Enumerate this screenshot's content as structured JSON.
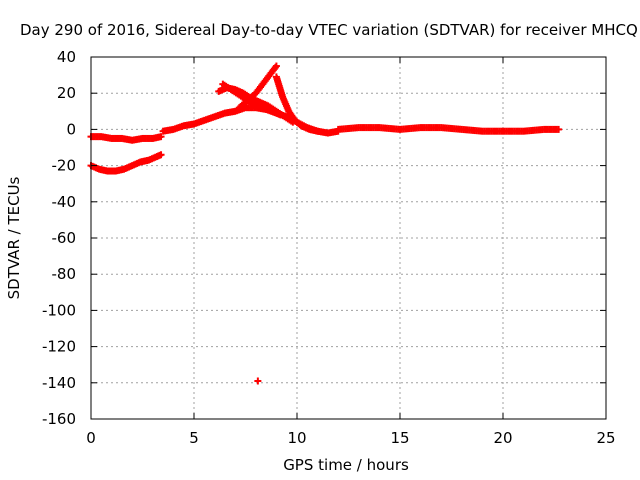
{
  "chart_data": {
    "type": "scatter",
    "title": "Day 290 of 2016, Sidereal Day-to-day VTEC variation (SDTVAR) for receiver MHCQ",
    "xlabel": "GPS time / hours",
    "ylabel": "SDTVAR / TECUs",
    "xlim": [
      0,
      25
    ],
    "ylim": [
      -160,
      40
    ],
    "xticks": [
      "0",
      "5",
      "10",
      "15",
      "20",
      "25"
    ],
    "yticks": [
      "40",
      "20",
      "0",
      "-20",
      "-40",
      "-60",
      "-80",
      "-100",
      "-120",
      "-140",
      "-160"
    ],
    "grid": true,
    "marker": "plus",
    "color": "#ff0000",
    "series": [
      {
        "x": [
          0.0,
          0.5,
          1.0,
          1.5,
          2.0,
          2.5,
          3.0,
          3.4
        ],
        "y": [
          -4,
          -4,
          -5,
          -5,
          -6,
          -5,
          -5,
          -4
        ]
      },
      {
        "x": [
          0.0,
          0.4,
          0.8,
          1.2,
          1.6,
          2.0,
          2.4,
          2.8,
          3.2,
          3.4
        ],
        "y": [
          -20,
          -22,
          -23,
          -23,
          -22,
          -20,
          -18,
          -17,
          -15,
          -14
        ]
      },
      {
        "x": [
          3.5,
          4.0,
          4.5,
          5.0,
          5.5,
          6.0,
          6.5,
          7.0,
          7.5,
          8.0,
          8.5,
          9.0,
          9.5,
          10.0,
          10.5,
          11.0,
          11.5,
          12.0
        ],
        "y": [
          -1,
          0,
          2,
          3,
          5,
          7,
          9,
          10,
          12,
          12,
          11,
          9,
          7,
          4,
          1,
          -1,
          -2,
          -1
        ]
      },
      {
        "x": [
          6.2,
          6.6,
          7.0,
          7.4,
          7.8,
          8.2,
          8.6,
          9.0,
          9.4,
          9.8
        ],
        "y": [
          21,
          23,
          22,
          20,
          17,
          15,
          13,
          10,
          7,
          4
        ]
      },
      {
        "x": [
          6.4,
          6.8,
          7.2,
          7.6,
          8.0,
          8.4,
          8.8,
          9.2
        ],
        "y": [
          25,
          22,
          19,
          16,
          14,
          12,
          10,
          8
        ]
      },
      {
        "x": [
          7.2,
          7.6,
          8.0,
          8.4,
          8.8,
          9.0
        ],
        "y": [
          12,
          16,
          20,
          26,
          32,
          35
        ]
      },
      {
        "x": [
          9.0,
          9.3,
          9.6,
          9.9,
          10.2,
          10.6,
          11.0
        ],
        "y": [
          29,
          18,
          10,
          5,
          2,
          0,
          -1
        ]
      },
      {
        "x": [
          12.0,
          13.0,
          14.0,
          15.0,
          16.0,
          17.0,
          18.0,
          19.0,
          20.0,
          21.0,
          22.0,
          22.7
        ],
        "y": [
          0,
          1,
          1,
          0,
          1,
          1,
          0,
          -1,
          -1,
          -1,
          0,
          0
        ]
      },
      {
        "x": [
          8.1
        ],
        "y": [
          -139
        ]
      }
    ]
  }
}
